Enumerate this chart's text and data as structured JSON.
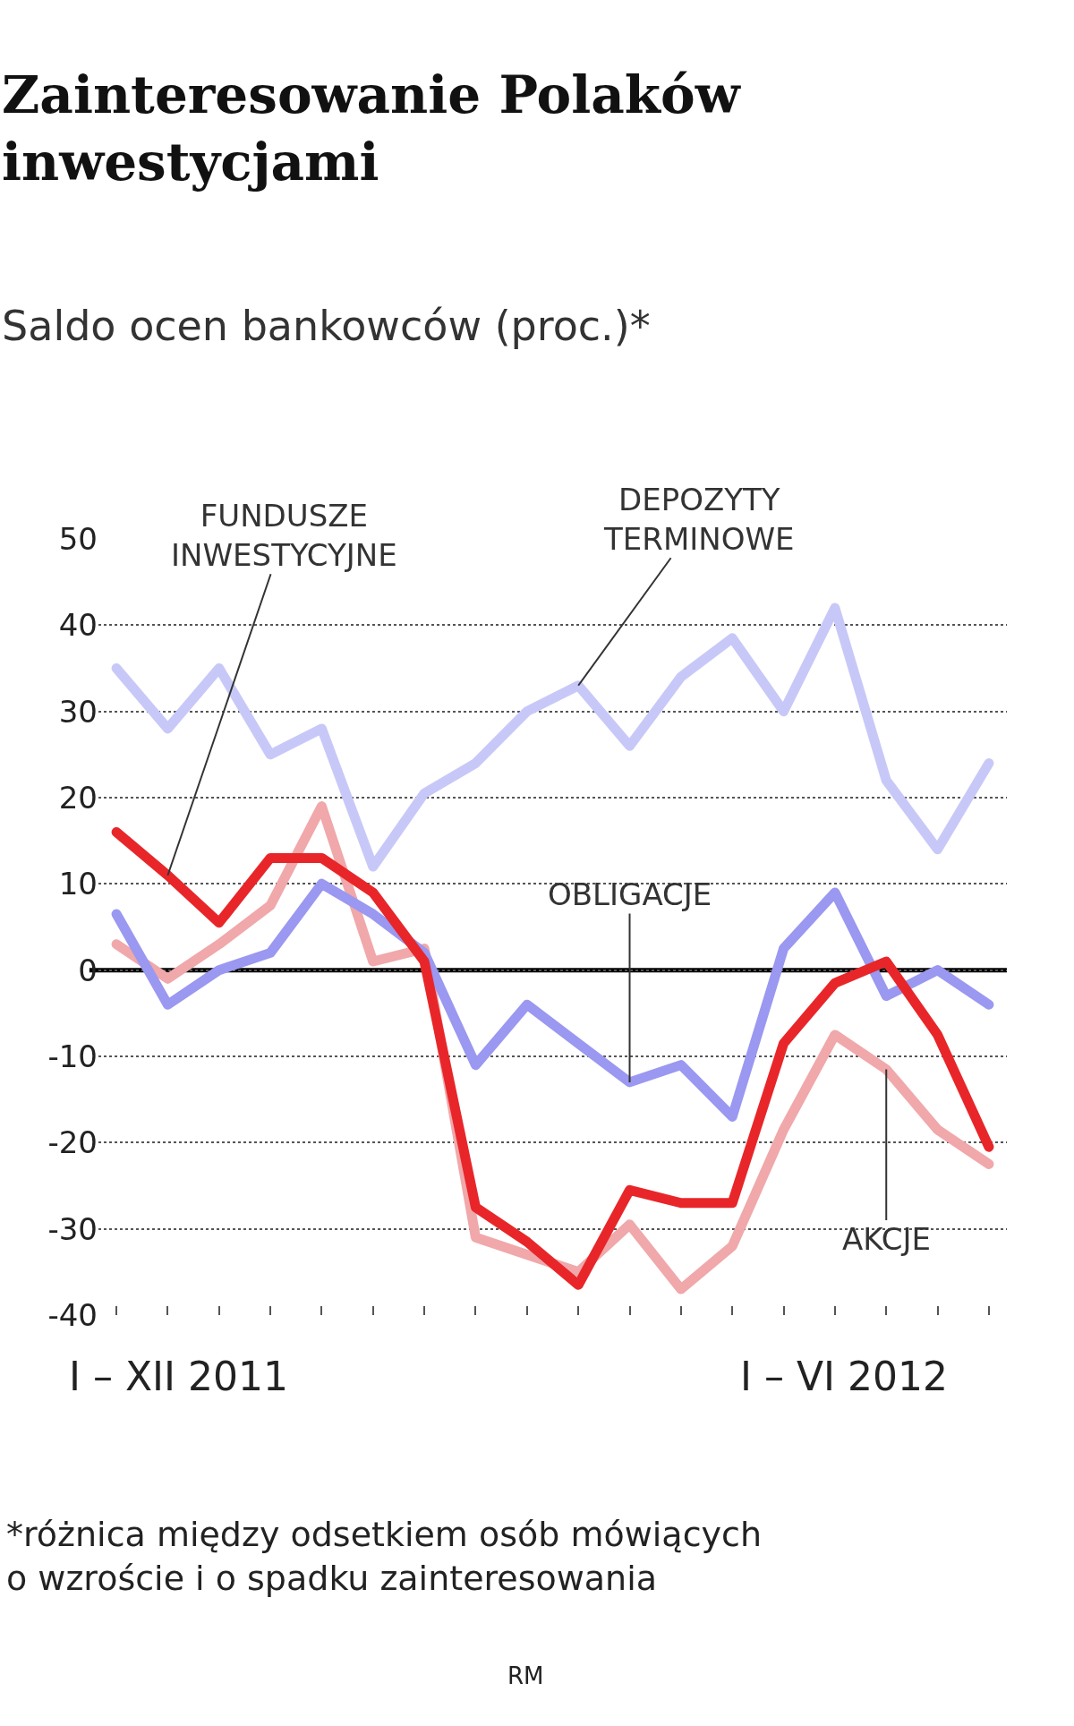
{
  "chart_data": {
    "type": "line",
    "title": "Zainteresowanie Polaków inwestycjami",
    "subtitle": "Saldo ocen bankowców (proc.)*",
    "categories": [
      null,
      null,
      null,
      null,
      null,
      null,
      null,
      null,
      null,
      null,
      null,
      null,
      null,
      null,
      null,
      null,
      null,
      null
    ],
    "series": [
      {
        "name": "DEPOZYTY TERMINOWE",
        "color": "#c8c8f8",
        "values": [
          35,
          28,
          35,
          25,
          28,
          12,
          20.5,
          24,
          30,
          33,
          26,
          34,
          38.5,
          30,
          42,
          22,
          14,
          24
        ]
      },
      {
        "name": "AKCJE",
        "color": "#f0a8aa",
        "values": [
          3,
          -1,
          3,
          7.5,
          19,
          1,
          2.5,
          -31,
          -33,
          -35,
          -29.5,
          -37,
          -32,
          -18.5,
          -7.5,
          -11.5,
          -18.5,
          -22.5
        ]
      },
      {
        "name": "OBLIGACJE",
        "color": "#9a98f0",
        "values": [
          6.5,
          -4,
          0,
          2,
          10,
          6.5,
          2,
          -11,
          -4,
          -8.5,
          -13,
          -11,
          -17,
          2.5,
          9,
          -3,
          0,
          -4
        ]
      },
      {
        "name": "FUNDUSZE INWESTYCYJNE",
        "color": "#e8262a",
        "values": [
          16,
          11,
          5.5,
          13,
          13,
          9,
          1,
          -27.5,
          -31.5,
          -36.5,
          -25.5,
          -27,
          -27,
          -8.5,
          -1.5,
          1,
          -7.5,
          -20.5
        ]
      }
    ],
    "ylim": [
      -40,
      50
    ],
    "yticks": [
      -40,
      -30,
      -20,
      -10,
      0,
      10,
      20,
      30,
      40,
      50
    ],
    "grid": "y",
    "legend": false,
    "line_style": "solid",
    "ref_lines": [
      {
        "axis": "y",
        "value": 0,
        "color": "#000000",
        "line_style": "solid"
      }
    ],
    "annotations": [
      "I – XII 2011",
      "I – VI 2012",
      "*różnica między odsetkiem osób mówiących o wzroście i o spadku zainteresowania",
      "RM"
    ]
  }
}
